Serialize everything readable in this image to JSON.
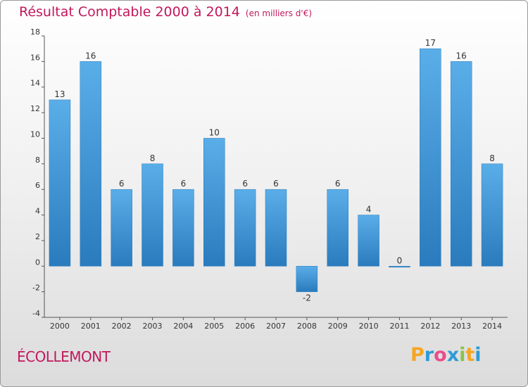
{
  "title": "Résultat Comptable 2000 à 2014",
  "subtitle": "(en milliers d'€)",
  "commune": "ÉCOLLEMONT",
  "brand": {
    "letters": [
      "P",
      "r",
      "o",
      "x",
      "i",
      "t",
      "i"
    ],
    "colors": [
      "#f5a623",
      "#2e9bd6",
      "#e84c8b",
      "#2e9bd6",
      "#8bc34a",
      "#f5a623",
      "#2e9bd6"
    ]
  },
  "colors": {
    "bar_light": "#5aaee8",
    "bar_dark": "#2a7bbd",
    "title": "#c2185b"
  },
  "chart_data": {
    "type": "bar",
    "categories": [
      "2000",
      "2001",
      "2002",
      "2003",
      "2004",
      "2005",
      "2006",
      "2007",
      "2008",
      "2009",
      "2010",
      "2011",
      "2012",
      "2013",
      "2014"
    ],
    "values": [
      13,
      16,
      6,
      8,
      6,
      10,
      6,
      6,
      -2,
      6,
      4,
      0,
      17,
      16,
      8
    ],
    "labels": [
      "13",
      "16",
      "6",
      "8",
      "6",
      "10",
      "6",
      "6",
      "-2",
      "6",
      "4",
      "0",
      "17",
      "16",
      "8"
    ],
    "ylim": [
      -4,
      18
    ],
    "yticks": [
      -4,
      -2,
      0,
      2,
      4,
      6,
      8,
      10,
      12,
      14,
      16,
      18
    ],
    "ytick_labels": [
      "-4",
      "-2",
      "0",
      "2",
      "4",
      "6",
      "8",
      "10",
      "12",
      "14",
      "16",
      "18"
    ],
    "grid": false,
    "xlabel": "",
    "ylabel": ""
  }
}
